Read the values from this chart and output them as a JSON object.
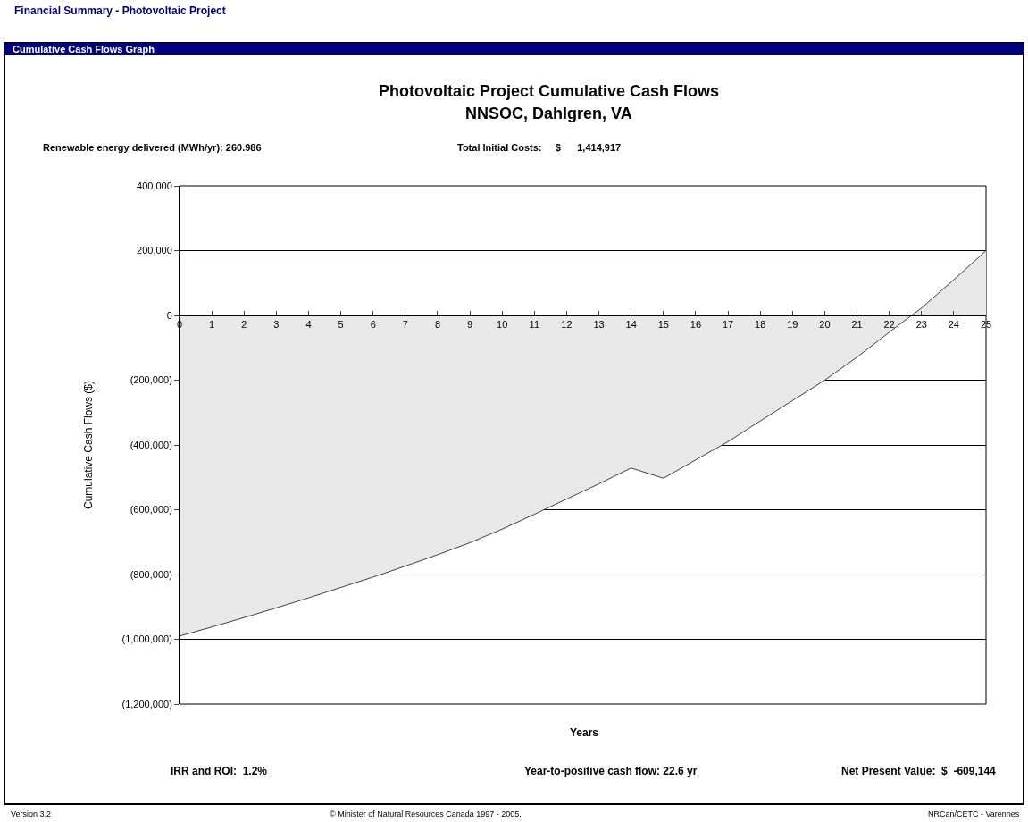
{
  "chart_data": {
    "type": "area",
    "title": "Photovoltaic Project Cumulative Cash Flows",
    "subtitle": "NNSOC, Dahlgren, VA",
    "xlabel": "Years",
    "ylabel": "Cumulative Cash Flows ($)",
    "annotations": [
      "Financial Summary - Photovoltaic Project",
      "Cumulative Cash Flows Graph",
      "Renewable energy delivered (MWh/yr): 260.986",
      "Total Initial Costs:     $      1,414,917",
      "IRR and ROI:  1.2%",
      "Year-to-positive cash flow: 22.6 yr",
      "Net Present Value:  $  -609,144",
      "Version 3.2",
      "© Minister of Natural Resources Canada 1997 - 2005.",
      "NRCan/CETC - Varennes"
    ],
    "x": [
      0,
      1,
      2,
      3,
      4,
      5,
      6,
      7,
      8,
      9,
      10,
      11,
      12,
      13,
      14,
      15,
      16,
      17,
      18,
      19,
      20,
      21,
      22,
      23,
      24,
      25
    ],
    "series": [
      {
        "color": "#404040",
        "values": [
          -990000,
          -962000,
          -933000,
          -903000,
          -872000,
          -840000,
          -808000,
          -774000,
          -739000,
          -702000,
          -660000,
          -614000,
          -567000,
          -520000,
          -471000,
          -503000,
          -446000,
          -390000,
          -326000,
          -263000,
          -200000,
          -129000,
          -52000,
          23000,
          110000,
          200000
        ]
      }
    ],
    "xlim": [
      0,
      25
    ],
    "xticks": [
      0,
      1,
      2,
      3,
      4,
      5,
      6,
      7,
      8,
      9,
      10,
      11,
      12,
      13,
      14,
      15,
      16,
      17,
      18,
      19,
      20,
      21,
      22,
      23,
      24,
      25
    ],
    "ylim": [
      -1200000,
      400000
    ],
    "yticks": [
      {
        "value": -1200000,
        "label": "(1,200,000)"
      },
      {
        "value": -1000000,
        "label": "(1,000,000)"
      },
      {
        "value": -800000,
        "label": "(800,000)"
      },
      {
        "value": -600000,
        "label": "(600,000)"
      },
      {
        "value": -400000,
        "label": "(400,000)"
      },
      {
        "value": -200000,
        "label": "(200,000)"
      },
      0,
      {
        "value": 200000,
        "label": "200,000"
      },
      {
        "value": 400000,
        "label": "400,000"
      }
    ],
    "grid": "y",
    "marker": "none",
    "line_style": "solid"
  }
}
